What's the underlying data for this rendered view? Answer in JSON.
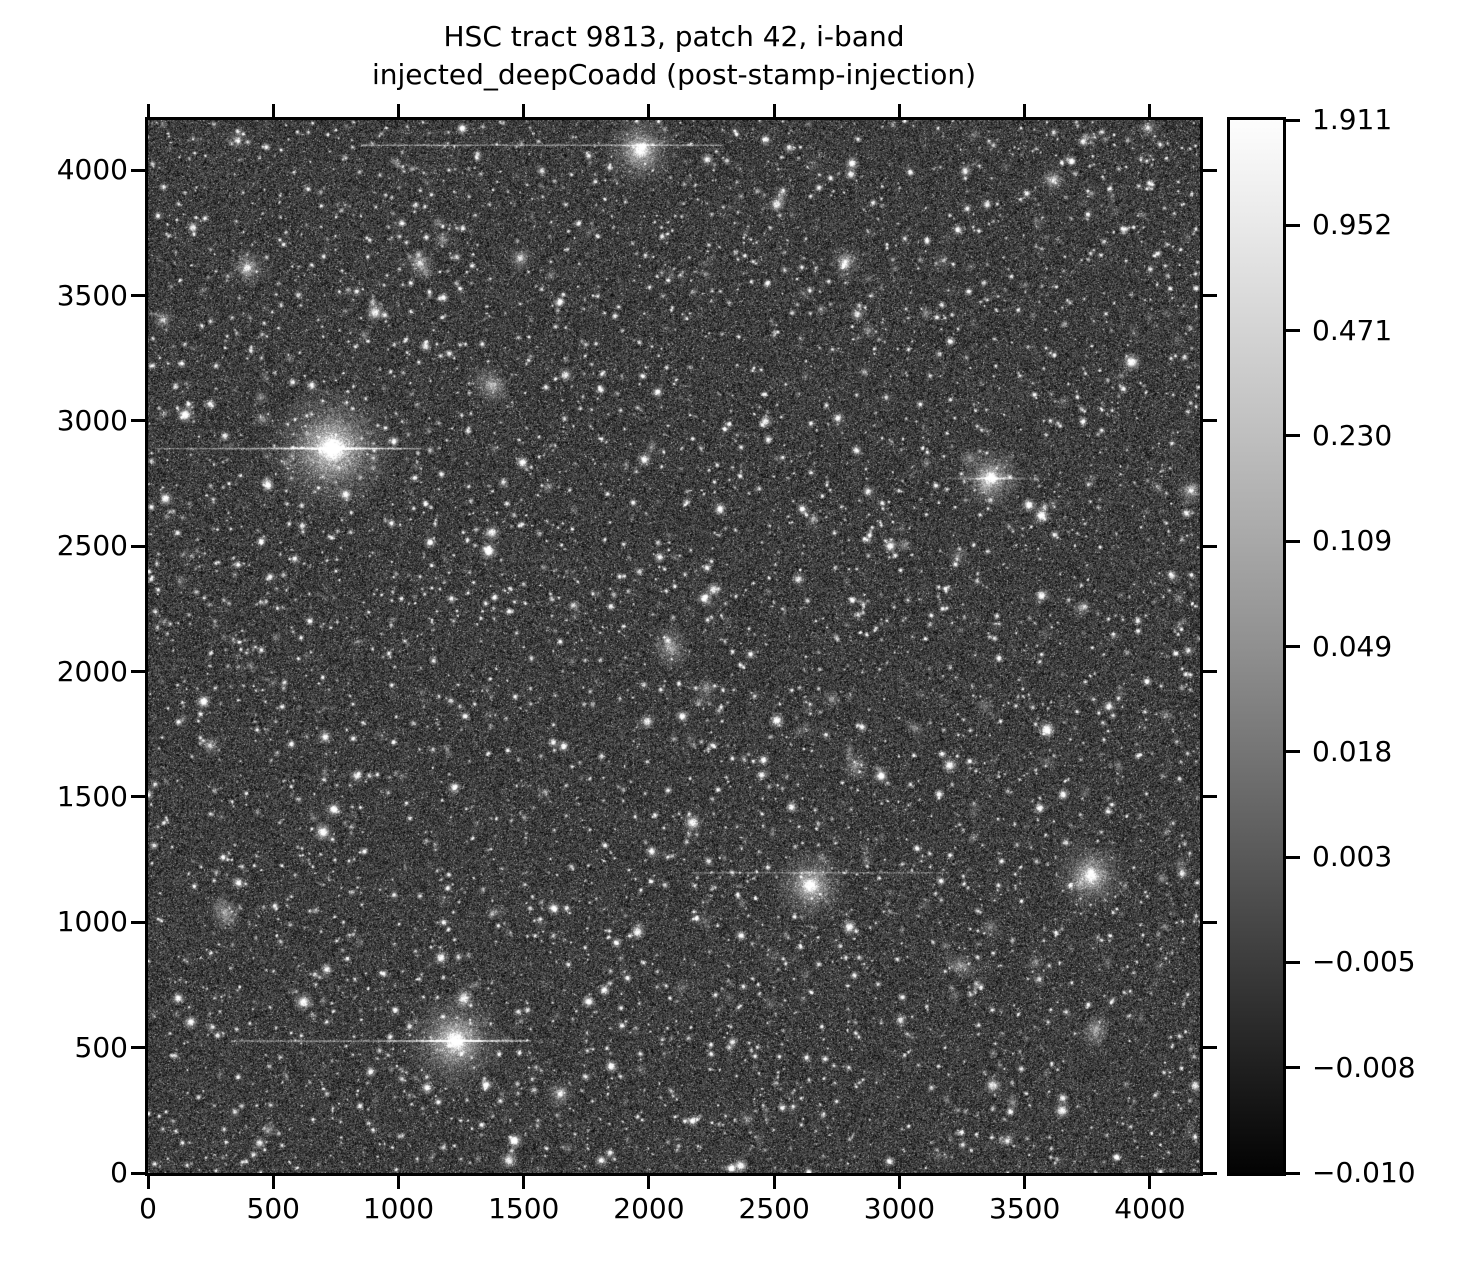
{
  "title": {
    "line1": "HSC tract 9813, patch 42, i-band",
    "line2": "injected_deepCoadd (post-stamp-injection)"
  },
  "axes": {
    "x_tick_labels": [
      "0",
      "500",
      "1000",
      "1500",
      "2000",
      "2500",
      "3000",
      "3500",
      "4000"
    ],
    "y_tick_labels": [
      "0",
      "500",
      "1000",
      "1500",
      "2000",
      "2500",
      "3000",
      "3500",
      "4000"
    ],
    "x_tick_values": [
      0,
      500,
      1000,
      1500,
      2000,
      2500,
      3000,
      3500,
      4000
    ],
    "y_tick_values": [
      0,
      500,
      1000,
      1500,
      2000,
      2500,
      3000,
      3500,
      4000
    ],
    "x_range": [
      0,
      4200
    ],
    "y_range": [
      0,
      4200
    ]
  },
  "colorbar": {
    "tick_labels": [
      "1.911",
      "0.952",
      "0.471",
      "0.230",
      "0.109",
      "0.049",
      "0.018",
      "0.003",
      "−0.005",
      "−0.008",
      "−0.010"
    ],
    "top_color": "#ffffff",
    "bottom_color": "#000000"
  },
  "colors": {
    "background": "#ffffff",
    "text": "#000000",
    "frame": "#000000",
    "sky_base": "#3e3e3e"
  },
  "chart_data": {
    "type": "heatmap",
    "title": "HSC tract 9813, patch 42, i-band\ninjected_deepCoadd (post-stamp-injection)",
    "xlabel": "",
    "ylabel": "",
    "xlim": [
      0,
      4200
    ],
    "ylim": [
      0,
      4200
    ],
    "x_ticks": [
      0,
      500,
      1000,
      1500,
      2000,
      2500,
      3000,
      3500,
      4000
    ],
    "y_ticks": [
      0,
      500,
      1000,
      1500,
      2000,
      2500,
      3000,
      3500,
      4000
    ],
    "colormap": "gray, asinh-like stretch",
    "colorbar_ticks": [
      1.911,
      0.952,
      0.471,
      0.23,
      0.109,
      0.049,
      0.018,
      0.003,
      -0.005,
      -0.008,
      -0.01
    ],
    "colorbar_range": [
      -0.01,
      1.911
    ],
    "grid": false,
    "legend": "none",
    "content": "dense star/galaxy field of an HSC deep coadd with injected stamps",
    "bright_sources": [
      {
        "x": 735,
        "y": 2890,
        "r": 260,
        "b": 1.0,
        "type": "star",
        "spike": true
      },
      {
        "x": 1227,
        "y": 527,
        "r": 200,
        "b": 0.95,
        "type": "star",
        "spike": true
      },
      {
        "x": 1966,
        "y": 4080,
        "r": 150,
        "b": 0.9,
        "type": "star",
        "spike": false
      },
      {
        "x": 3365,
        "y": 2770,
        "r": 130,
        "b": 0.9,
        "type": "star",
        "spike": true
      },
      {
        "x": 2645,
        "y": 1146,
        "r": 150,
        "b": 0.9,
        "type": "star",
        "spike": false
      },
      {
        "x": 3765,
        "y": 1186,
        "r": 150,
        "b": 0.85,
        "type": "star",
        "spike": false
      },
      {
        "x": 396,
        "y": 3609,
        "r": 80,
        "b": 0.8,
        "type": "star",
        "spike": false
      },
      {
        "x": 1087,
        "y": 3629,
        "r": 64,
        "b": 0.75,
        "type": "star",
        "spike": false
      },
      {
        "x": 1487,
        "y": 3649,
        "r": 60,
        "b": 0.75,
        "type": "star",
        "spike": false
      },
      {
        "x": 2785,
        "y": 3633,
        "r": 68,
        "b": 0.8,
        "type": "star",
        "spike": false
      },
      {
        "x": 3616,
        "y": 3961,
        "r": 58,
        "b": 0.75,
        "type": "star",
        "spike": false
      },
      {
        "x": 60,
        "y": 3402,
        "r": 52,
        "b": 0.7,
        "type": "star",
        "spike": false
      },
      {
        "x": 4164,
        "y": 2723,
        "r": 60,
        "b": 0.8,
        "type": "star",
        "spike": false
      },
      {
        "x": 1646,
        "y": 315,
        "r": 64,
        "b": 0.75,
        "type": "star",
        "spike": false
      },
      {
        "x": 3992,
        "y": 4168,
        "r": 45,
        "b": 0.8,
        "type": "star",
        "spike": false
      },
      {
        "x": 248,
        "y": 1705,
        "r": 50,
        "b": 0.7,
        "type": "star",
        "spike": false
      },
      {
        "x": 2086,
        "y": 2096,
        "r": 100,
        "b": 0.5,
        "type": "galaxy",
        "spike": false
      },
      {
        "x": 1367,
        "y": 3142,
        "r": 95,
        "b": 0.45,
        "type": "galaxy",
        "spike": false
      },
      {
        "x": 308,
        "y": 1038,
        "r": 85,
        "b": 0.5,
        "type": "galaxy",
        "spike": false
      },
      {
        "x": 3245,
        "y": 826,
        "r": 75,
        "b": 0.5,
        "type": "galaxy",
        "spike": false
      },
      {
        "x": 3784,
        "y": 567,
        "r": 80,
        "b": 0.5,
        "type": "galaxy",
        "spike": false
      },
      {
        "x": 2825,
        "y": 1625,
        "r": 65,
        "b": 0.45,
        "type": "galaxy",
        "spike": false
      }
    ],
    "streaks": [
      {
        "y": 4100,
        "x1": 850,
        "x2": 2290,
        "alpha": 0.45
      },
      {
        "y": 2890,
        "x1": 30,
        "x2": 1090,
        "alpha": 0.4
      },
      {
        "y": 527,
        "x1": 330,
        "x2": 1530,
        "alpha": 0.45
      },
      {
        "y": 1198,
        "x1": 2170,
        "x2": 3200,
        "alpha": 0.3
      }
    ]
  },
  "render": {
    "seed": 9813,
    "small_star_count": 4000,
    "medium_star_count": 180,
    "faint_galaxy_count": 460
  }
}
